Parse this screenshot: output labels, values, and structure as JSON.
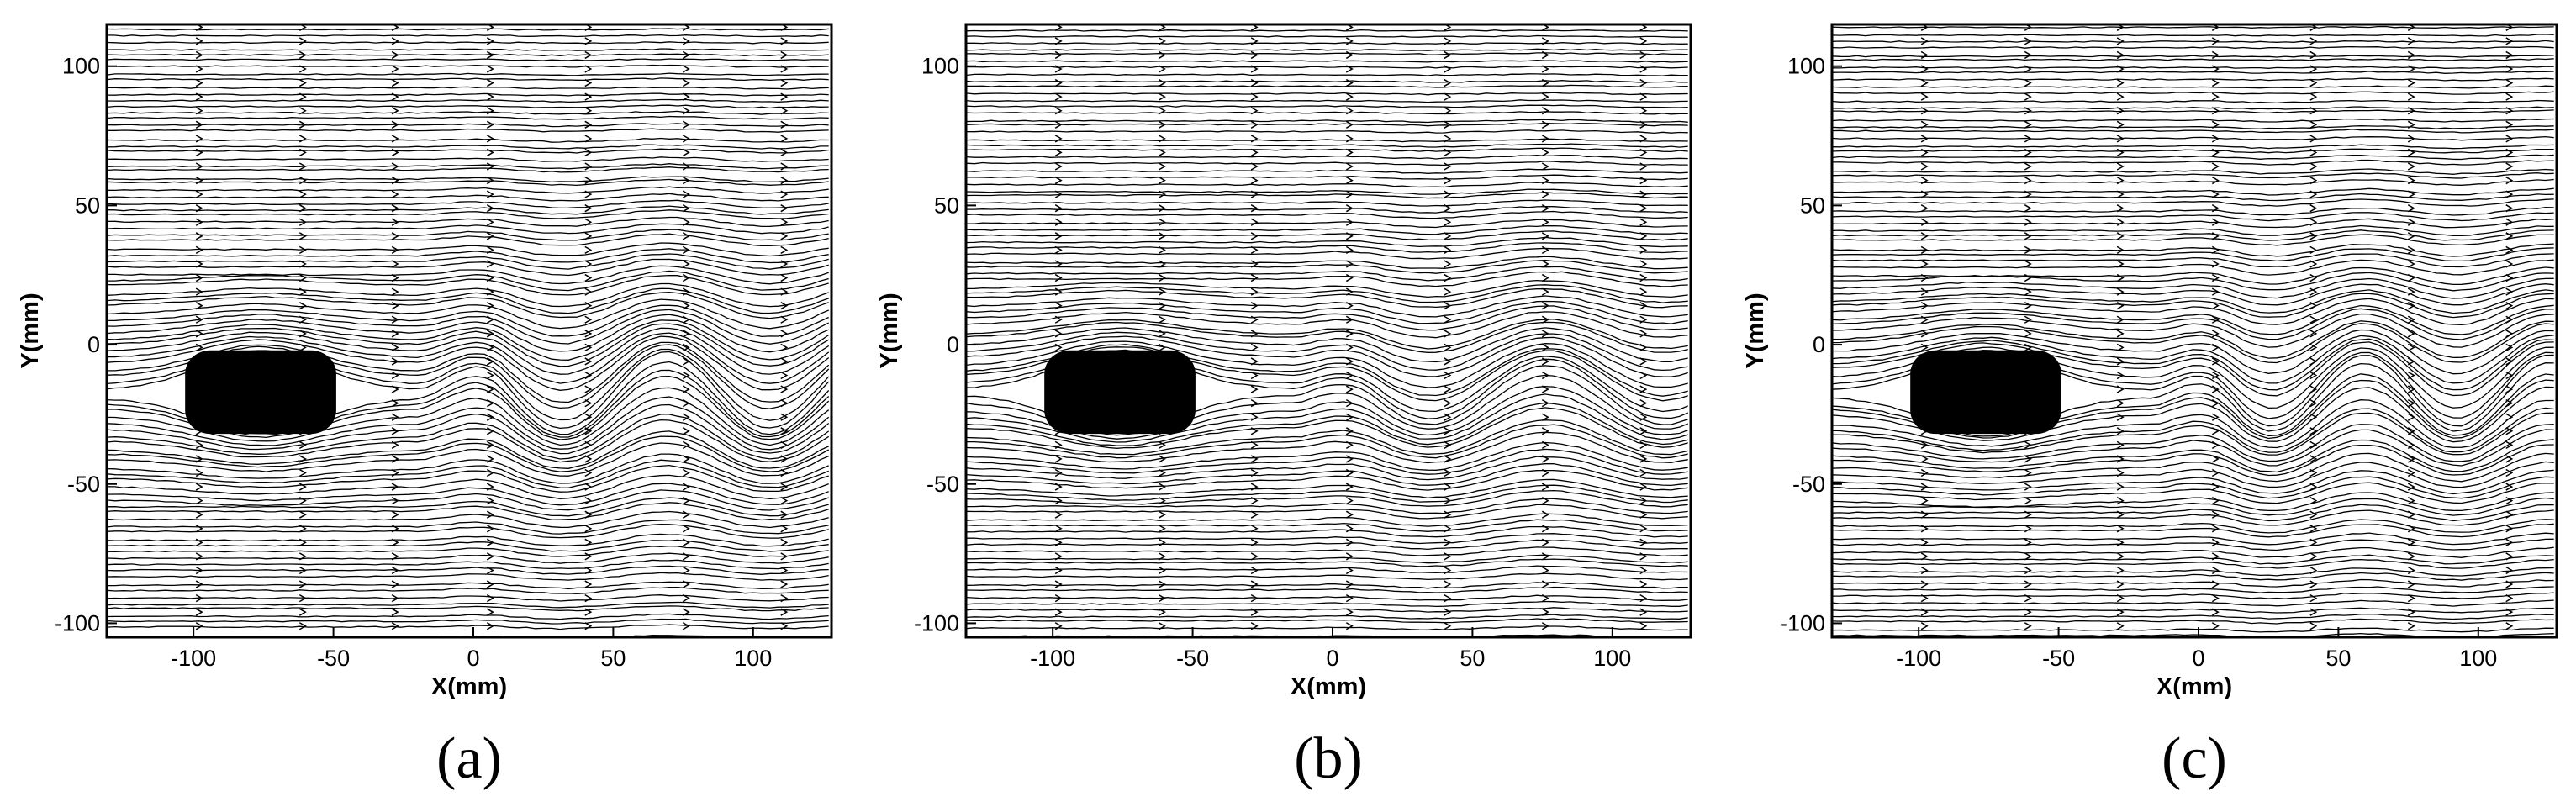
{
  "chart_data": [
    {
      "type": "streamline",
      "label": "(a)",
      "xlabel": "X(mm)",
      "ylabel": "Y(mm)",
      "xlim": [
        -131,
        128
      ],
      "ylim": [
        -105,
        115
      ],
      "xticks": [
        -100,
        -50,
        0,
        50,
        100
      ],
      "yticks": [
        -100,
        -50,
        0,
        50,
        100
      ]
    },
    {
      "type": "streamline",
      "label": "(b)",
      "xlabel": "X(mm)",
      "ylabel": "Y(mm)",
      "xlim": [
        -131,
        128
      ],
      "ylim": [
        -105,
        115
      ],
      "xticks": [
        -100,
        -50,
        0,
        50,
        100
      ],
      "yticks": [
        -100,
        -50,
        0,
        50,
        100
      ]
    },
    {
      "type": "streamline",
      "label": "(c)",
      "xlabel": "X(mm)",
      "ylabel": "Y(mm)",
      "xlim": [
        -131,
        128
      ],
      "ylim": [
        -105,
        115
      ],
      "xticks": [
        -100,
        -50,
        0,
        50,
        100
      ],
      "yticks": [
        -100,
        -50,
        0,
        50,
        100
      ]
    }
  ]
}
